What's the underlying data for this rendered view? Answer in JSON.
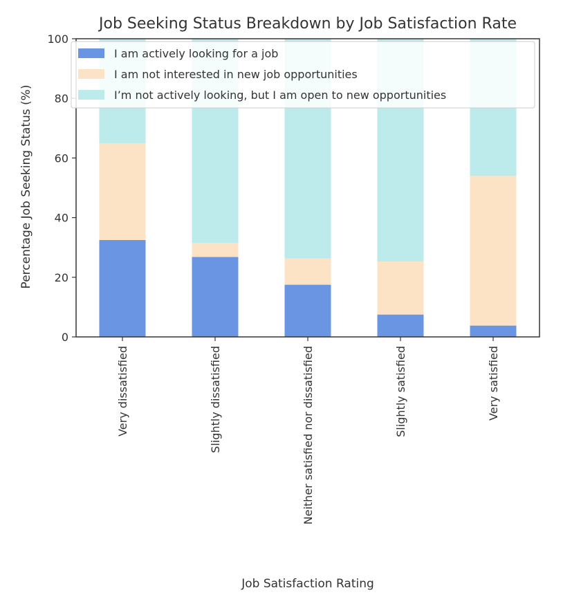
{
  "chart_data": {
    "type": "bar",
    "stacked": true,
    "title": "Job Seeking Status Breakdown by Job Satisfaction Rate",
    "xlabel": "Job Satisfaction Rating",
    "ylabel": "Percentage Job Seeking Status (%)",
    "ylim": [
      0,
      100
    ],
    "yticks": [
      0,
      20,
      40,
      60,
      80,
      100
    ],
    "grid": false,
    "legend_position": "top-left",
    "categories": [
      "Very dissatisfied",
      "Slightly dissatisfied",
      "Neither satisfied nor dissatisfied",
      "Slightly satisfied",
      "Very satisfied"
    ],
    "series": [
      {
        "name": "I am actively looking for a job",
        "color": "#6a95e3",
        "values": [
          32.5,
          26.8,
          17.5,
          7.5,
          3.8
        ]
      },
      {
        "name": "I am not interested in new job opportunities",
        "color": "#fde3c5",
        "values": [
          32.5,
          4.7,
          8.8,
          17.8,
          50.2
        ]
      },
      {
        "name": "I’m not actively looking, but I am open to new opportunities",
        "color": "#bdeaea",
        "values": [
          35.0,
          68.5,
          73.7,
          74.7,
          46.0
        ]
      }
    ]
  }
}
